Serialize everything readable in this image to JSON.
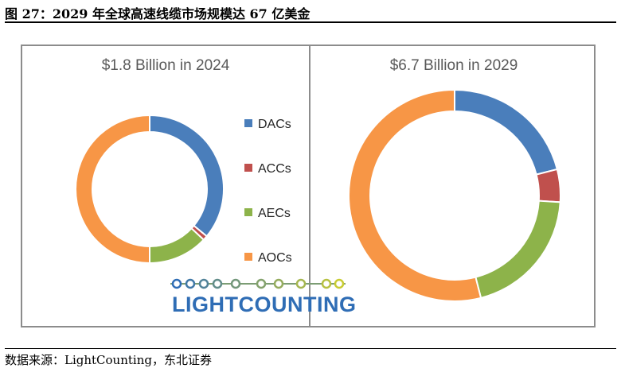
{
  "figure": {
    "title": "图 27：2029 年全球高速线缆市场规模达 67 亿美金",
    "source": "数据来源：LightCounting，东北证券"
  },
  "chart_data": [
    {
      "type": "donut",
      "title": "$1.8 Billion in 2024",
      "categories": [
        "DACs",
        "ACCs",
        "AECs",
        "AOCs"
      ],
      "values": [
        0.36,
        0.01,
        0.13,
        0.5
      ],
      "unit": "fraction of total"
    },
    {
      "type": "donut",
      "title": "$6.7 Billion in 2029",
      "categories": [
        "DACs",
        "ACCs",
        "AECs",
        "AOCs"
      ],
      "values": [
        0.21,
        0.05,
        0.2,
        0.54
      ],
      "unit": "fraction of total"
    }
  ],
  "legend": {
    "placement": "between-charts",
    "items": [
      {
        "label": "DACs",
        "color": "#4a7ebb"
      },
      {
        "label": "ACCs",
        "color": "#c0504d"
      },
      {
        "label": "AECs",
        "color": "#8db34a"
      },
      {
        "label": "AOCs",
        "color": "#f79646"
      }
    ]
  },
  "logo": {
    "text": "LIGHTCOUNTING",
    "colors": {
      "text": "#2f6db5",
      "nodes_start": "#2f6db5",
      "nodes_end": "#c8cc33"
    }
  }
}
